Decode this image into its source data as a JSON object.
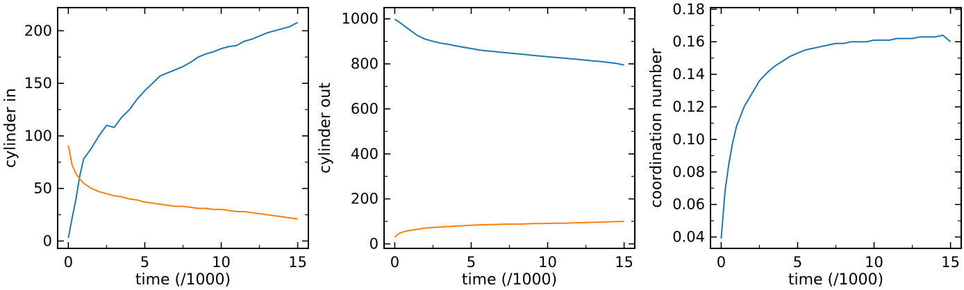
{
  "colors": {
    "blue": "#1f77b4",
    "orange": "#ff7f0e",
    "axis": "#000000",
    "background": "#ffffff"
  },
  "chart_data": [
    {
      "type": "line",
      "xlabel": "time (/1000)",
      "ylabel": "cylinder in",
      "xlim": [
        -0.7,
        15.7
      ],
      "ylim": [
        -7,
        222
      ],
      "xticks": [
        0,
        5,
        10,
        15
      ],
      "yticks": [
        0,
        50,
        100,
        150,
        200
      ],
      "grid": false,
      "series": [
        {
          "color": "#1f77b4",
          "x": [
            0,
            0.25,
            0.5,
            0.75,
            1,
            1.5,
            2,
            2.5,
            3,
            3.5,
            4,
            4.5,
            5,
            5.5,
            6,
            6.5,
            7,
            7.5,
            8,
            8.5,
            9,
            9.5,
            10,
            10.5,
            11,
            11.5,
            12,
            12.5,
            13,
            13.5,
            14,
            14.5,
            15
          ],
          "y": [
            3,
            22,
            40,
            62,
            78,
            88,
            100,
            110,
            108,
            118,
            125,
            135,
            143,
            150,
            157,
            160,
            163,
            166,
            170,
            175,
            178,
            180,
            183,
            185,
            186,
            190,
            192,
            195,
            198,
            200,
            202,
            204,
            208
          ]
        },
        {
          "color": "#ff7f0e",
          "x": [
            0,
            0.25,
            0.5,
            0.75,
            1,
            1.5,
            2,
            2.5,
            3,
            3.5,
            4,
            4.5,
            5,
            5.5,
            6,
            6.5,
            7,
            7.5,
            8,
            8.5,
            9,
            9.5,
            10,
            10.5,
            11,
            11.5,
            12,
            12.5,
            13,
            13.5,
            14,
            14.5,
            15
          ],
          "y": [
            91,
            72,
            64,
            59,
            55,
            50,
            47,
            45,
            43,
            42,
            40,
            39,
            37,
            36,
            35,
            34,
            33,
            33,
            32,
            31,
            31,
            30,
            30,
            29,
            28,
            28,
            27,
            26,
            25,
            24,
            23,
            22,
            21
          ]
        }
      ]
    },
    {
      "type": "line",
      "xlabel": "time (/1000)",
      "ylabel": "cylinder out",
      "xlim": [
        -0.7,
        15.7
      ],
      "ylim": [
        -20,
        1050
      ],
      "xticks": [
        0,
        5,
        10,
        15
      ],
      "yticks": [
        0,
        200,
        400,
        600,
        800,
        1000
      ],
      "grid": false,
      "series": [
        {
          "color": "#1f77b4",
          "x": [
            0,
            0.25,
            0.5,
            0.75,
            1,
            1.5,
            2,
            2.5,
            3,
            3.5,
            4,
            4.5,
            5,
            5.5,
            6,
            6.5,
            7,
            7.5,
            8,
            8.5,
            9,
            9.5,
            10,
            10.5,
            11,
            11.5,
            12,
            12.5,
            13,
            13.5,
            14,
            14.5,
            15
          ],
          "y": [
            998,
            988,
            975,
            962,
            950,
            925,
            910,
            900,
            892,
            887,
            880,
            874,
            868,
            862,
            858,
            855,
            851,
            848,
            845,
            842,
            838,
            835,
            832,
            829,
            826,
            823,
            820,
            817,
            813,
            810,
            806,
            802,
            795
          ]
        },
        {
          "color": "#ff7f0e",
          "x": [
            0,
            0.25,
            0.5,
            0.75,
            1,
            1.5,
            2,
            2.5,
            3,
            3.5,
            4,
            4.5,
            5,
            5.5,
            6,
            6.5,
            7,
            7.5,
            8,
            8.5,
            9,
            9.5,
            10,
            10.5,
            11,
            11.5,
            12,
            12.5,
            13,
            13.5,
            14,
            14.5,
            15
          ],
          "y": [
            30,
            45,
            52,
            57,
            60,
            65,
            70,
            73,
            75,
            77,
            79,
            81,
            83,
            84,
            85,
            86,
            87,
            88,
            88,
            89,
            90,
            90,
            91,
            92,
            92,
            93,
            94,
            95,
            96,
            97,
            98,
            99,
            100
          ]
        }
      ]
    },
    {
      "type": "line",
      "xlabel": "time (/1000)",
      "ylabel": "coordination number",
      "xlim": [
        -0.7,
        15.7
      ],
      "ylim": [
        0.033,
        0.181
      ],
      "xticks": [
        0,
        5,
        10,
        15
      ],
      "yticks": [
        0.04,
        0.06,
        0.08,
        0.1,
        0.12,
        0.14,
        0.16,
        0.18
      ],
      "ytick_labels": [
        "0.04",
        "0.06",
        "0.08",
        "0.10",
        "0.12",
        "0.14",
        "0.16",
        "0.18"
      ],
      "grid": false,
      "series": [
        {
          "color": "#1f77b4",
          "x": [
            0,
            0.25,
            0.5,
            0.75,
            1,
            1.5,
            2,
            2.5,
            3,
            3.5,
            4,
            4.5,
            5,
            5.5,
            6,
            6.5,
            7,
            7.5,
            8,
            8.5,
            9,
            9.5,
            10,
            10.5,
            11,
            11.5,
            12,
            12.5,
            13,
            13.5,
            14,
            14.5,
            15
          ],
          "y": [
            0.039,
            0.068,
            0.085,
            0.098,
            0.108,
            0.12,
            0.128,
            0.136,
            0.141,
            0.145,
            0.148,
            0.151,
            0.153,
            0.155,
            0.156,
            0.157,
            0.158,
            0.159,
            0.159,
            0.16,
            0.16,
            0.16,
            0.161,
            0.161,
            0.161,
            0.162,
            0.162,
            0.162,
            0.163,
            0.163,
            0.163,
            0.164,
            0.16
          ]
        }
      ]
    }
  ]
}
